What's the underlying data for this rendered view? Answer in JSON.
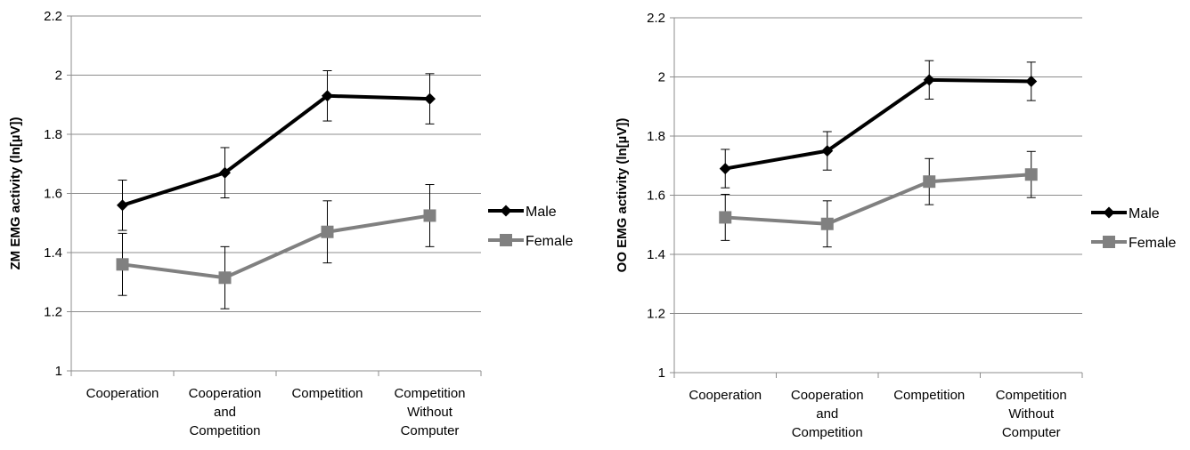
{
  "chart_data": [
    {
      "type": "line",
      "ylabel": "ZM EMG activity  (ln[µV])",
      "ylim": [
        1,
        2.2
      ],
      "yticks": [
        "1",
        "1.2",
        "1.4",
        "1.6",
        "1.8",
        "2",
        "2.2"
      ],
      "grid": true,
      "legend_position": "right",
      "categories": [
        [
          "Cooperation"
        ],
        [
          "Cooperation",
          "and",
          "Competition"
        ],
        [
          "Competition"
        ],
        [
          "Competition",
          "Without",
          "Computer"
        ]
      ],
      "series": [
        {
          "name": "Male",
          "values": [
            1.56,
            1.67,
            1.93,
            1.92
          ],
          "errors": [
            0.085,
            0.085,
            0.085,
            0.085
          ],
          "color": "#000000",
          "marker": "diamond"
        },
        {
          "name": "Female",
          "values": [
            1.36,
            1.315,
            1.47,
            1.525
          ],
          "errors": [
            0.105,
            0.105,
            0.105,
            0.105
          ],
          "color": "#808080",
          "marker": "square"
        }
      ]
    },
    {
      "type": "line",
      "ylabel": "OO EMG activity  (ln[µV])",
      "ylim": [
        1,
        2.2
      ],
      "yticks": [
        "1",
        "1.2",
        "1.4",
        "1.6",
        "1.8",
        "2",
        "2.2"
      ],
      "grid": true,
      "legend_position": "right",
      "categories": [
        [
          "Cooperation"
        ],
        [
          "Cooperation",
          "and",
          "Competition"
        ],
        [
          "Competition"
        ],
        [
          "Competition",
          "Without",
          "Computer"
        ]
      ],
      "series": [
        {
          "name": "Male",
          "values": [
            1.69,
            1.75,
            1.99,
            1.985
          ],
          "errors": [
            0.065,
            0.065,
            0.065,
            0.065
          ],
          "color": "#000000",
          "marker": "diamond"
        },
        {
          "name": "Female",
          "values": [
            1.525,
            1.503,
            1.646,
            1.67
          ],
          "errors": [
            0.078,
            0.078,
            0.078,
            0.078
          ],
          "color": "#808080",
          "marker": "square"
        }
      ]
    }
  ]
}
